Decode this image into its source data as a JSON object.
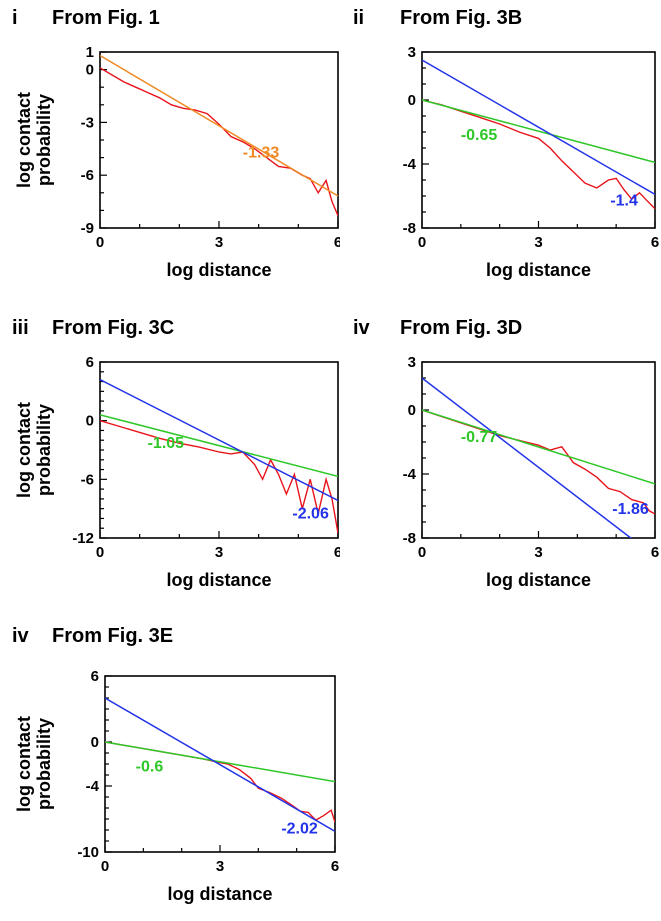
{
  "colors": {
    "data": "#e8141b",
    "fit": "#ef8a25",
    "green": "#2ec728",
    "blue": "#2233e8",
    "text": "#000000"
  },
  "chart_data": [
    {
      "type": "line",
      "panel_id": "i",
      "title": "From Fig. 1",
      "xlabel": "log distance",
      "ylabel": [
        "log contact",
        "probability"
      ],
      "xlim": [
        0,
        6
      ],
      "ylim": [
        -9,
        1
      ],
      "xticks": [
        0,
        3,
        6
      ],
      "yticks": [
        1,
        0,
        -3,
        -6,
        -9
      ],
      "series": [
        {
          "kind": "data",
          "x": [
            0,
            0.3,
            0.6,
            0.9,
            1.2,
            1.5,
            1.8,
            2.1,
            2.4,
            2.7,
            3.0,
            3.3,
            3.6,
            3.9,
            4.2,
            4.5,
            4.8,
            5.1,
            5.3,
            5.5,
            5.7,
            5.85,
            6.0
          ],
          "y": [
            0.1,
            -0.3,
            -0.7,
            -1.0,
            -1.3,
            -1.6,
            -2.0,
            -2.2,
            -2.3,
            -2.5,
            -3.1,
            -3.8,
            -4.1,
            -4.5,
            -5.0,
            -5.5,
            -5.6,
            -6.0,
            -6.2,
            -7.0,
            -6.3,
            -7.5,
            -8.3
          ]
        },
        {
          "kind": "fit",
          "color_key": "fit",
          "slope": -1.33,
          "intercept": 0.8,
          "label": "-1.33",
          "label_at": [
            3.6,
            -5.0
          ]
        }
      ]
    },
    {
      "type": "line",
      "panel_id": "ii",
      "title": "From Fig. 3B",
      "xlabel": "log distance",
      "ylabel": [],
      "xlim": [
        0,
        6
      ],
      "ylim": [
        -8,
        3
      ],
      "xticks": [
        0,
        3,
        6
      ],
      "yticks": [
        3,
        0,
        -4,
        -8
      ],
      "series": [
        {
          "kind": "data",
          "x": [
            0,
            0.5,
            1.0,
            1.5,
            2.0,
            2.5,
            3.0,
            3.3,
            3.6,
            3.9,
            4.2,
            4.5,
            4.8,
            5.0,
            5.2,
            5.4,
            5.6,
            5.8,
            6.0
          ],
          "y": [
            0,
            -0.3,
            -0.7,
            -1.1,
            -1.5,
            -2.0,
            -2.4,
            -3.0,
            -3.8,
            -4.5,
            -5.2,
            -5.5,
            -5.0,
            -4.9,
            -5.6,
            -6.2,
            -5.8,
            -6.3,
            -6.8
          ]
        },
        {
          "kind": "fit",
          "color_key": "green",
          "slope": -0.65,
          "intercept": 0.0,
          "label": "-0.65",
          "label_at": [
            1.0,
            -2.5
          ]
        },
        {
          "kind": "fit",
          "color_key": "blue",
          "slope": -1.4,
          "intercept": 2.5,
          "label": "-1.4",
          "label_at": [
            4.85,
            -6.6
          ]
        }
      ]
    },
    {
      "type": "line",
      "panel_id": "iii",
      "title": "From Fig. 3C",
      "xlabel": "log distance",
      "ylabel": [
        "log contact",
        "probability"
      ],
      "xlim": [
        0,
        6
      ],
      "ylim": [
        -12,
        6
      ],
      "xticks": [
        0,
        3,
        6
      ],
      "yticks": [
        6,
        0,
        -6,
        -12
      ],
      "series": [
        {
          "kind": "data",
          "x": [
            0,
            0.5,
            1.0,
            1.5,
            2.0,
            2.5,
            3.0,
            3.3,
            3.6,
            3.9,
            4.1,
            4.3,
            4.5,
            4.7,
            4.9,
            5.1,
            5.3,
            5.5,
            5.7,
            5.85,
            6.0
          ],
          "y": [
            0,
            -0.6,
            -1.2,
            -1.8,
            -2.3,
            -2.7,
            -3.2,
            -3.4,
            -3.2,
            -4.5,
            -6.0,
            -4.0,
            -5.5,
            -7.5,
            -5.5,
            -9.0,
            -6.0,
            -9.5,
            -6.0,
            -8.0,
            -11.5
          ]
        },
        {
          "kind": "fit",
          "color_key": "green",
          "slope": -1.05,
          "intercept": 0.6,
          "label": "-1.05",
          "label_at": [
            1.2,
            -2.8
          ]
        },
        {
          "kind": "fit",
          "color_key": "blue",
          "slope": -2.06,
          "intercept": 4.2,
          "label": "-2.06",
          "label_at": [
            4.85,
            -10.0
          ]
        }
      ]
    },
    {
      "type": "line",
      "panel_id": "iv",
      "title": "From Fig. 3D",
      "xlabel": "log distance",
      "ylabel": [],
      "xlim": [
        0,
        6
      ],
      "ylim": [
        -8,
        3
      ],
      "xticks": [
        0,
        3,
        6
      ],
      "yticks": [
        3,
        0,
        -4,
        -8
      ],
      "series": [
        {
          "kind": "data",
          "x": [
            0,
            0.5,
            1.0,
            1.5,
            2.0,
            2.5,
            3.0,
            3.3,
            3.6,
            3.9,
            4.2,
            4.5,
            4.8,
            5.1,
            5.4,
            5.7,
            5.85,
            6.0
          ],
          "y": [
            0,
            -0.4,
            -0.8,
            -1.2,
            -1.6,
            -1.9,
            -2.2,
            -2.5,
            -2.3,
            -3.3,
            -3.7,
            -4.2,
            -4.9,
            -5.1,
            -5.6,
            -5.8,
            -6.3,
            -6.5
          ]
        },
        {
          "kind": "fit",
          "color_key": "green",
          "slope": -0.77,
          "intercept": 0.0,
          "label": "-0.77",
          "label_at": [
            1.0,
            -2.0
          ]
        },
        {
          "kind": "fit",
          "color_key": "blue",
          "slope": -1.86,
          "intercept": 2.0,
          "label": "-1.86",
          "label_at": [
            4.9,
            -6.5
          ]
        }
      ]
    },
    {
      "type": "line",
      "panel_id": "iv",
      "title": "From Fig. 3E",
      "xlabel": "log distance",
      "ylabel": [
        "log contact",
        "probability"
      ],
      "xlim": [
        0,
        6
      ],
      "ylim": [
        -10,
        6
      ],
      "xticks": [
        0,
        3,
        6
      ],
      "yticks": [
        6,
        0,
        -4,
        -10
      ],
      "series": [
        {
          "kind": "data",
          "x": [
            0,
            0.5,
            1.0,
            1.5,
            2.0,
            2.5,
            2.9,
            3.2,
            3.5,
            3.8,
            4.0,
            4.3,
            4.6,
            4.9,
            5.1,
            5.3,
            5.5,
            5.7,
            5.9,
            6.0
          ],
          "y": [
            0,
            -0.3,
            -0.6,
            -0.9,
            -1.2,
            -1.5,
            -1.8,
            -2.0,
            -2.5,
            -3.3,
            -4.2,
            -4.6,
            -5.1,
            -5.8,
            -6.3,
            -6.4,
            -7.1,
            -6.7,
            -6.2,
            -7.3
          ]
        },
        {
          "kind": "fit",
          "color_key": "green",
          "slope": -0.6,
          "intercept": 0.0,
          "label": "-0.6",
          "label_at": [
            0.8,
            -2.7
          ]
        },
        {
          "kind": "fit",
          "color_key": "blue",
          "slope": -2.02,
          "intercept": 4.0,
          "label": "-2.02",
          "label_at": [
            4.6,
            -8.3
          ]
        }
      ]
    }
  ]
}
